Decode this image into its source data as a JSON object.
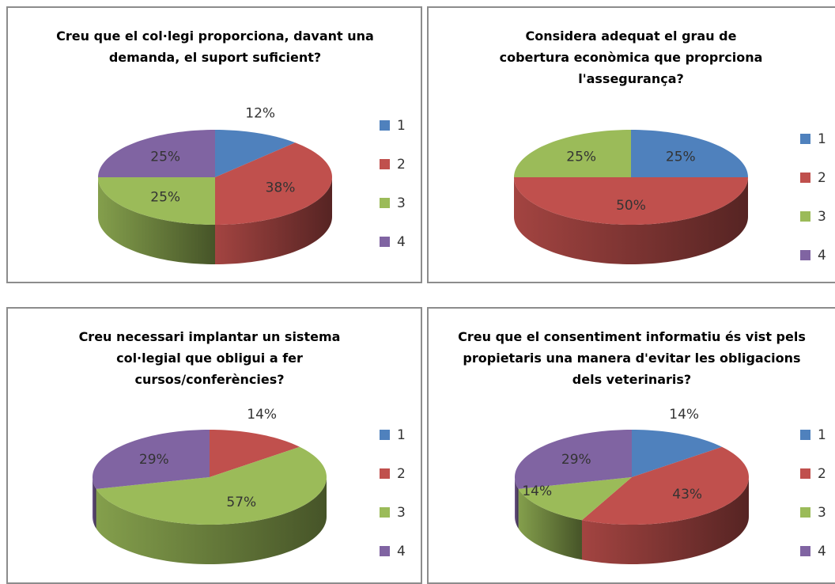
{
  "chart_data": [
    {
      "type": "pie",
      "title": "Creu que el col·legi proporciona, davant una demanda, el suport suficient?",
      "categories": [
        "1",
        "2",
        "3",
        "4"
      ],
      "values": [
        12,
        38,
        25,
        25
      ],
      "value_labels": [
        "12%",
        "38%",
        "25%",
        "25%"
      ],
      "colors": [
        "#4f81bd",
        "#c0504d",
        "#9bbb59",
        "#8064a2"
      ],
      "legend": "right"
    },
    {
      "type": "pie",
      "title": "Considera adequat el grau de cobertura econòmica que proprciona l'assegurança?",
      "categories": [
        "1",
        "2",
        "3",
        "4"
      ],
      "values": [
        25,
        50,
        25,
        0
      ],
      "value_labels": [
        "25%",
        "50%",
        "25%",
        null
      ],
      "colors": [
        "#4f81bd",
        "#c0504d",
        "#9bbb59",
        "#8064a2"
      ],
      "legend": "right"
    },
    {
      "type": "pie",
      "title": "Creu necessari implantar un sistema col·legial que obligui a fer cursos/conferències?",
      "categories": [
        "1",
        "2",
        "3",
        "4"
      ],
      "values": [
        0,
        14,
        57,
        29
      ],
      "value_labels": [
        null,
        "14%",
        "57%",
        "29%"
      ],
      "colors": [
        "#4f81bd",
        "#c0504d",
        "#9bbb59",
        "#8064a2"
      ],
      "legend": "right"
    },
    {
      "type": "pie",
      "title": "Creu que el consentiment informatiu és vist pels propietaris una manera d'evitar les obligacions dels veterinaris?",
      "categories": [
        "1",
        "2",
        "3",
        "4"
      ],
      "values": [
        14,
        43,
        14,
        29
      ],
      "value_labels": [
        "14%",
        "43%",
        "14%",
        "29%"
      ],
      "colors": [
        "#4f81bd",
        "#c0504d",
        "#9bbb59",
        "#8064a2"
      ],
      "legend": "right"
    }
  ]
}
